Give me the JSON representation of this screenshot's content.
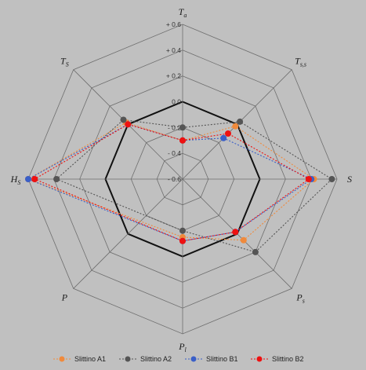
{
  "chart_data": {
    "type": "radar",
    "axes": [
      {
        "label": "T",
        "sub": "a"
      },
      {
        "label": "T",
        "sub": "s,s"
      },
      {
        "label": "S",
        "sub": ""
      },
      {
        "label": "P",
        "sub": "s"
      },
      {
        "label": "P",
        "sub": "l"
      },
      {
        "label": "P",
        "sub": ""
      },
      {
        "label": "H",
        "sub": "S"
      },
      {
        "label": "T",
        "sub": "S"
      }
    ],
    "rlim": [
      -0.6,
      0.6
    ],
    "tick_values": [
      -0.6,
      -0.4,
      -0.2,
      0.0,
      0.2,
      0.4,
      0.6
    ],
    "tick_labels": [
      "- 0.6",
      "- 0.4",
      "- 0.2",
      "0.0",
      "+ 0.2",
      "+ 0.4",
      "+ 0.6"
    ],
    "reference_value": 0.0,
    "series": [
      {
        "name": "Slittino A1",
        "color": "#f08a3c",
        "values": [
          -0.3,
          -0.02,
          0.42,
          0.07,
          -0.15,
          null,
          0.6,
          0.02
        ]
      },
      {
        "name": "Slittino A2",
        "color": "#555555",
        "values": [
          -0.2,
          0.03,
          0.56,
          0.2,
          -0.2,
          null,
          0.38,
          0.05
        ]
      },
      {
        "name": "Slittino B1",
        "color": "#3a5fc8",
        "values": [
          -0.3,
          -0.15,
          0.4,
          -0.02,
          -0.12,
          null,
          0.6,
          0.0
        ]
      },
      {
        "name": "Slittino B2",
        "color": "#ee1111",
        "values": [
          -0.3,
          -0.1,
          0.38,
          -0.02,
          -0.12,
          null,
          0.55,
          0.0
        ]
      }
    ],
    "grid": true,
    "legend": "bottom"
  }
}
